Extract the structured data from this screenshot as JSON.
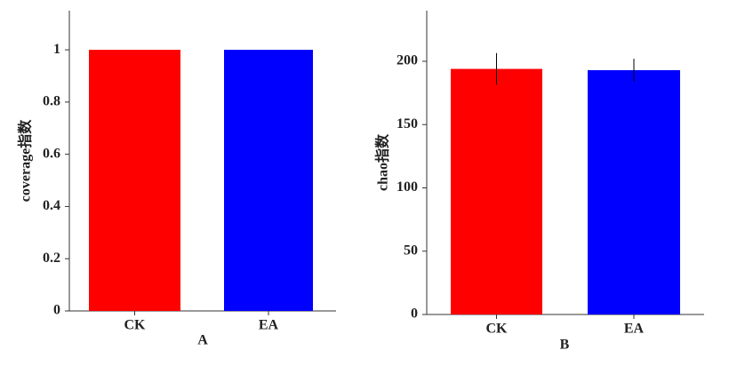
{
  "chart_data": [
    {
      "type": "bar",
      "ylabel": "coverage指数",
      "caption": "A",
      "categories": [
        "CK",
        "EA"
      ],
      "values": [
        1,
        1
      ],
      "colors": [
        "#ff0000",
        "#0000ff"
      ],
      "ylim": [
        0,
        1.15
      ],
      "yticks": [
        0,
        0.2,
        0.4,
        0.6,
        0.8,
        1
      ]
    },
    {
      "type": "bar",
      "ylabel": "chao指数",
      "caption": "B",
      "categories": [
        "CK",
        "EA"
      ],
      "values": [
        194,
        193
      ],
      "errors": [
        12.5,
        9
      ],
      "colors": [
        "#ff0000",
        "#0000ff"
      ],
      "ylim": [
        0,
        240
      ],
      "yticks": [
        0,
        50,
        100,
        150,
        200
      ]
    }
  ]
}
